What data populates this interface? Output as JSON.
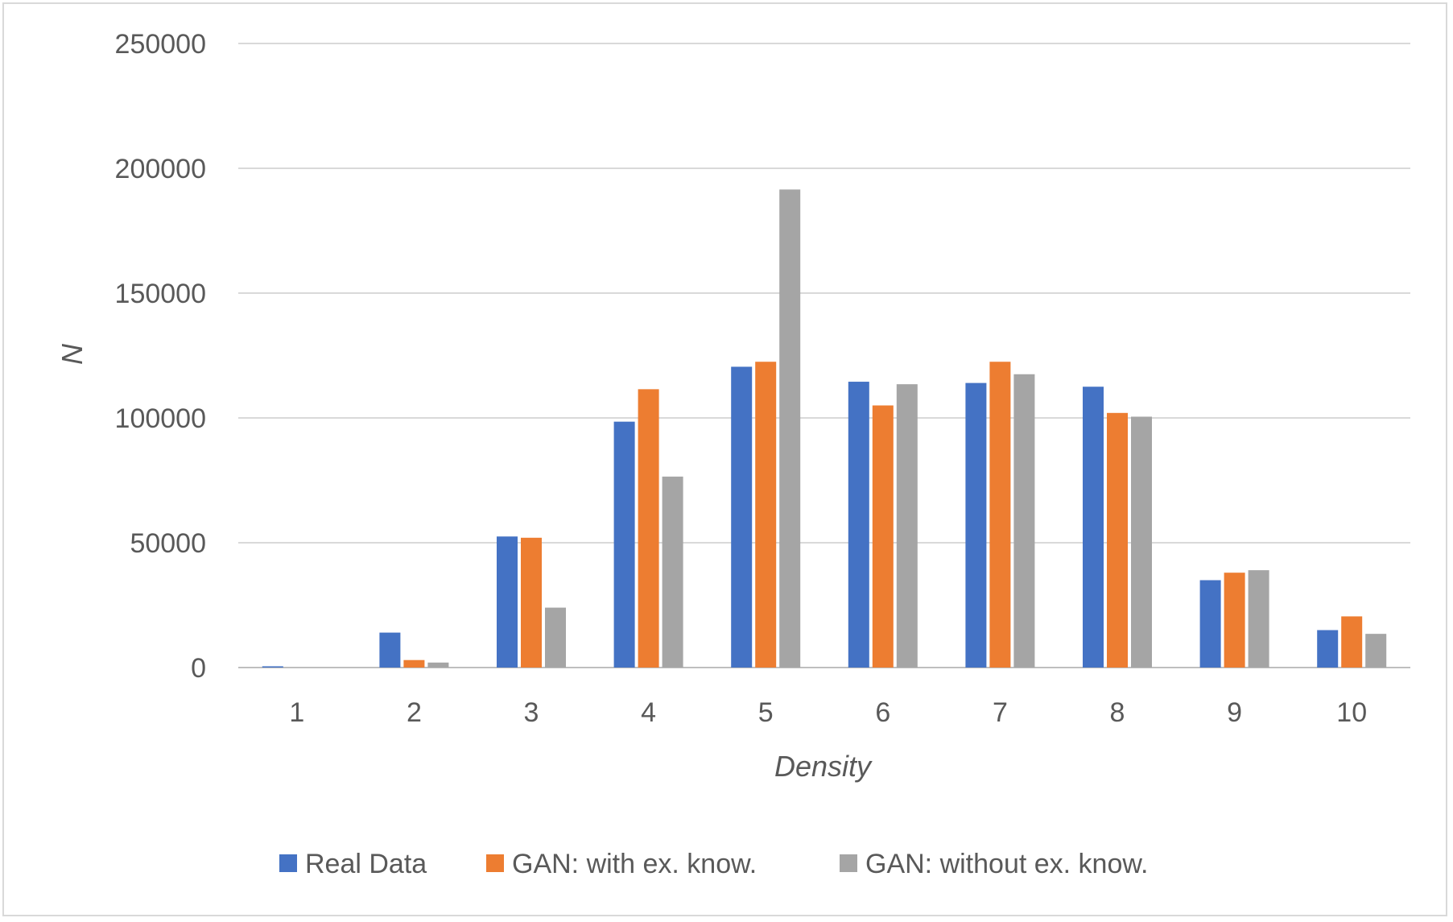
{
  "chart_data": {
    "type": "bar",
    "title": "",
    "xlabel": "Density",
    "ylabel": "N",
    "ylim": [
      0,
      250000
    ],
    "yticks": [
      0,
      50000,
      100000,
      150000,
      200000,
      250000
    ],
    "categories": [
      "1",
      "2",
      "3",
      "4",
      "5",
      "6",
      "7",
      "8",
      "9",
      "10"
    ],
    "grid": true,
    "legend_position": "bottom",
    "series": [
      {
        "name": "Real Data",
        "color": "#4472c4",
        "values": [
          500,
          14000,
          52500,
          98500,
          120500,
          114500,
          114000,
          112500,
          35000,
          15000
        ]
      },
      {
        "name": "GAN: with ex. know.",
        "color": "#ed7d31",
        "values": [
          0,
          3000,
          52000,
          111500,
          122500,
          105000,
          122500,
          102000,
          38000,
          20500
        ]
      },
      {
        "name": "GAN: without ex. know.",
        "color": "#a5a5a5",
        "values": [
          0,
          2000,
          24000,
          76500,
          191500,
          113500,
          117500,
          100500,
          39000,
          13500
        ]
      }
    ]
  }
}
